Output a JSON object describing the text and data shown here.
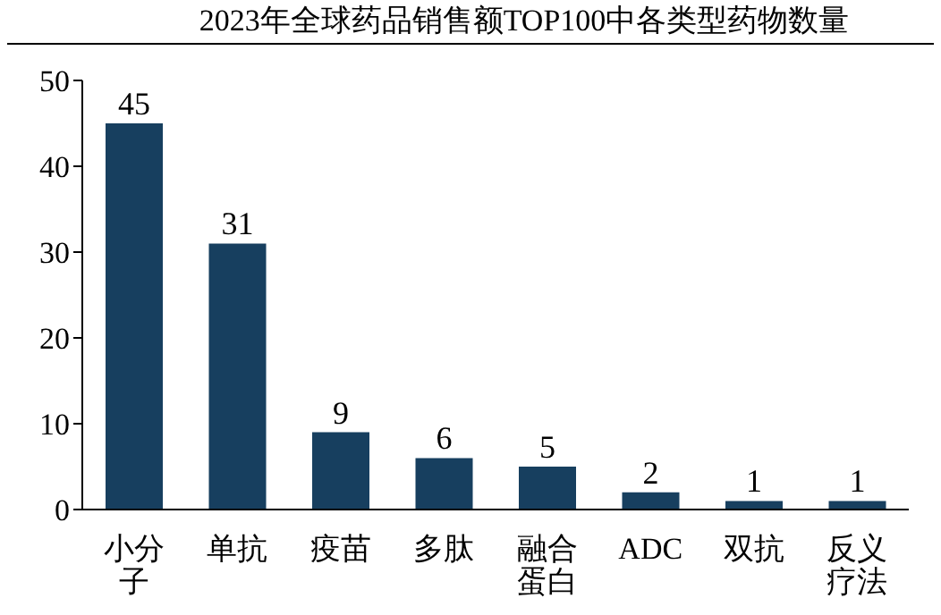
{
  "chart_data": {
    "type": "bar",
    "title": "2023年全球药品销售额TOP100中各类型药物数量",
    "categories": [
      "小分子",
      "单抗",
      "疫苗",
      "多肽",
      "融合蛋白",
      "ADC",
      "双抗",
      "反义疗法"
    ],
    "values": [
      45,
      31,
      9,
      6,
      5,
      2,
      1,
      1
    ],
    "color": "#173f5f",
    "ylim": [
      0,
      50
    ],
    "yticks": [
      0,
      10,
      20,
      30,
      40,
      50
    ],
    "grid": false,
    "data_labels": true
  }
}
